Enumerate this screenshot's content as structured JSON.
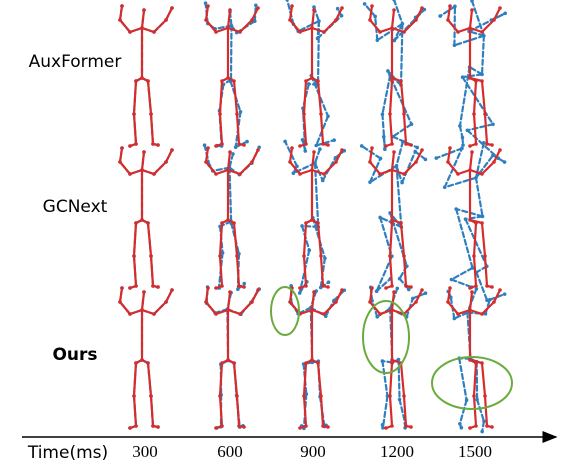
{
  "rows": [
    "AuxFormer",
    "GCNext",
    "Ours"
  ],
  "axis": {
    "label": "Time(ms)",
    "ticks": [
      "300",
      "600",
      "900",
      "1200",
      "1500"
    ]
  }
}
